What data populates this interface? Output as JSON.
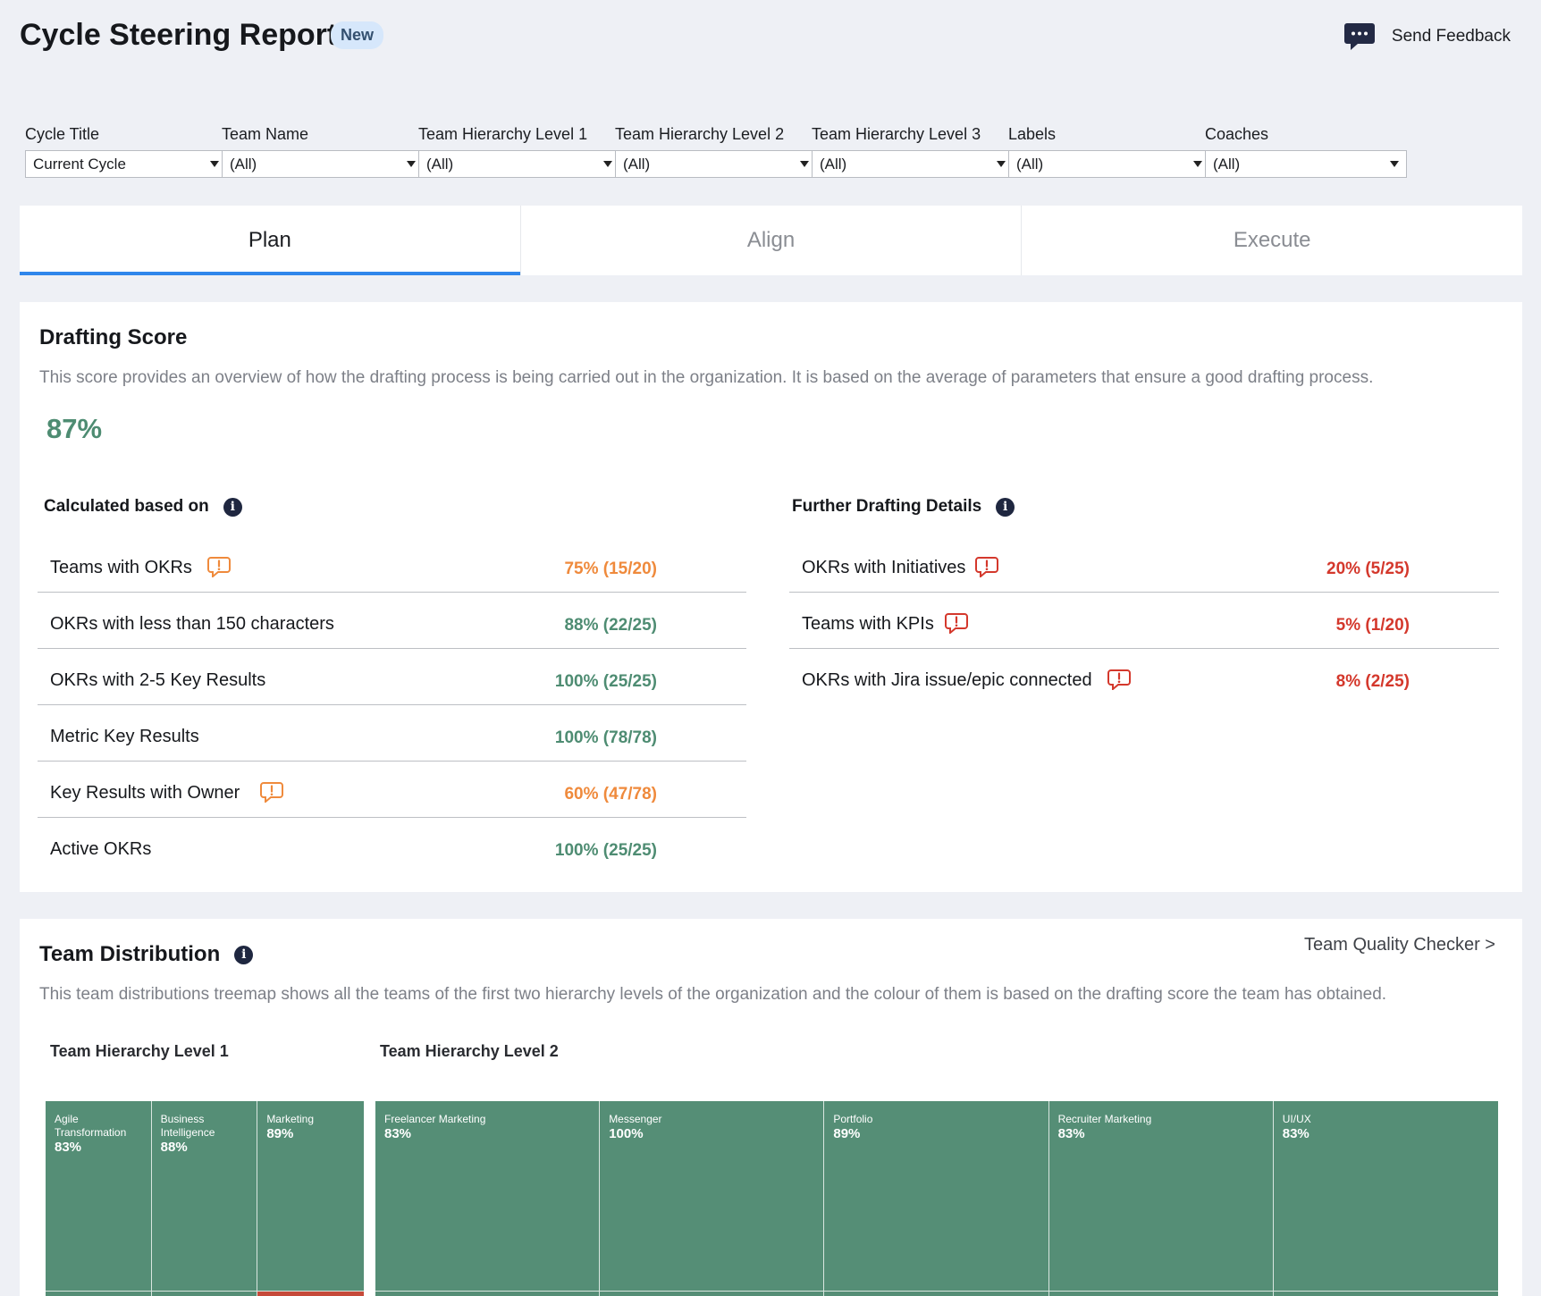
{
  "header": {
    "title": "Cycle Steering Report",
    "badge": "New",
    "feedback_label": "Send Feedback"
  },
  "filters": [
    {
      "label": "Cycle Title",
      "value": "Current Cycle"
    },
    {
      "label": "Team Name",
      "value": "(All)"
    },
    {
      "label": "Team Hierarchy Level 1",
      "value": "(All)"
    },
    {
      "label": "Team Hierarchy Level 2",
      "value": "(All)"
    },
    {
      "label": "Team Hierarchy Level 3",
      "value": "(All)"
    },
    {
      "label": "Labels",
      "value": "(All)"
    },
    {
      "label": "Coaches",
      "value": "(All)"
    }
  ],
  "tabs": [
    {
      "label": "Plan",
      "active": true
    },
    {
      "label": "Align",
      "active": false
    },
    {
      "label": "Execute",
      "active": false
    }
  ],
  "drafting": {
    "title": "Drafting Score",
    "description": "This score provides an overview of how the drafting process is being carried out in the organization. It is based on the average of parameters that ensure a good drafting process.",
    "score": "87%",
    "calculated": {
      "heading": "Calculated based on",
      "rows": [
        {
          "name": "Teams with OKRs",
          "value": "75% (15/20)",
          "status": "warn",
          "has_alert": true
        },
        {
          "name": "OKRs with less than 150 characters",
          "value": "88% (22/25)",
          "status": "good",
          "has_alert": false
        },
        {
          "name": "OKRs with 2-5 Key Results",
          "value": "100% (25/25)",
          "status": "good",
          "has_alert": false
        },
        {
          "name": "Metric Key Results",
          "value": "100% (78/78)",
          "status": "good",
          "has_alert": false
        },
        {
          "name": "Key Results with Owner",
          "value": "60% (47/78)",
          "status": "warn",
          "has_alert": true
        },
        {
          "name": "Active OKRs",
          "value": "100% (25/25)",
          "status": "good",
          "has_alert": false
        }
      ]
    },
    "further": {
      "heading": "Further Drafting Details",
      "rows": [
        {
          "name": "OKRs with Initiatives",
          "value": "20% (5/25)",
          "status": "bad",
          "has_alert": true
        },
        {
          "name": "Teams with KPIs",
          "value": "5% (1/20)",
          "status": "bad",
          "has_alert": true
        },
        {
          "name": "OKRs with Jira issue/epic connected",
          "value": "8% (2/25)",
          "status": "bad",
          "has_alert": true
        }
      ]
    }
  },
  "distribution": {
    "title": "Team Distribution",
    "link_label": "Team Quality Checker >",
    "description": "This team distributions treemap shows all the teams of the first two hierarchy levels of the organization and the colour of them is based on the drafting score the team has obtained.",
    "level1": {
      "heading": "Team Hierarchy Level 1",
      "tiles": [
        {
          "name": "Agile Transformation",
          "value": "83%",
          "bottom": "green"
        },
        {
          "name": "Business Intelligence",
          "value": "88%",
          "bottom": "green"
        },
        {
          "name": "Marketing",
          "value": "89%",
          "bottom": "red"
        }
      ]
    },
    "level2": {
      "heading": "Team Hierarchy Level 2",
      "tiles": [
        {
          "name": "Freelancer Marketing",
          "value": "83%",
          "bottom": "green"
        },
        {
          "name": "Messenger",
          "value": "100%",
          "bottom": "green"
        },
        {
          "name": "Portfolio",
          "value": "89%",
          "bottom": "green"
        },
        {
          "name": "Recruiter Marketing",
          "value": "83%",
          "bottom": "green"
        },
        {
          "name": "UI/UX",
          "value": "83%",
          "bottom": "green"
        }
      ]
    }
  },
  "colors": {
    "good": "#4e8c72",
    "warn": "#ef8a3c",
    "bad": "#d4382c",
    "accent": "#2f86eb",
    "tile": "#558e76"
  },
  "icons": {
    "feedback": "chat-bubble-icon",
    "info": "info-icon",
    "alert": "alert-comment-icon"
  }
}
